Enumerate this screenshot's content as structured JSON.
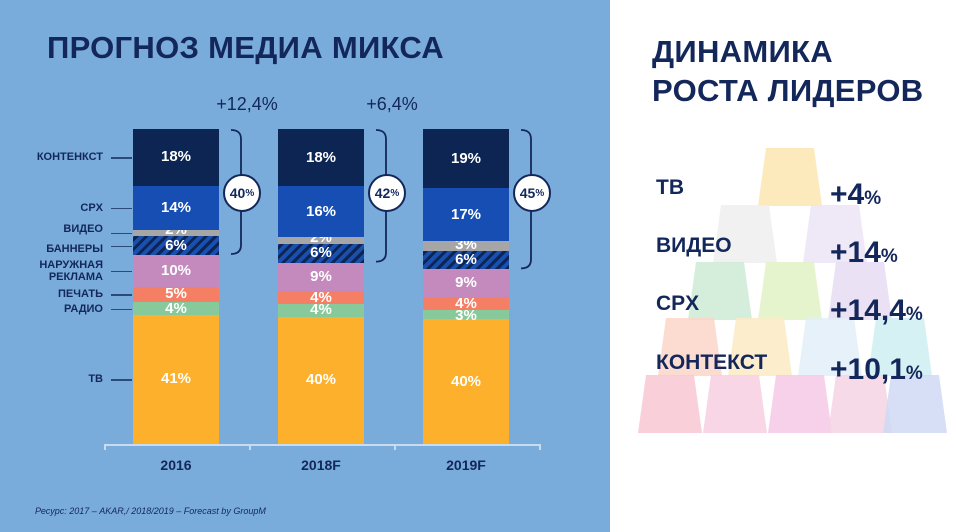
{
  "left_title": "ПРОГНОЗ МЕДИА МИКСА",
  "right_title": [
    "ДИНАМИКА",
    "РОСТА ЛИДЕРОВ"
  ],
  "footnote": "Ресурс: 2017 – AKAR,/ 2018/2019 – Forecast by GroupM",
  "chart_data": {
    "type": "bar",
    "stacked": true,
    "categories": [
      "2016",
      "2018F",
      "2019F"
    ],
    "series": [
      {
        "name": "ТВ",
        "color": "#fdb02b",
        "values": [
          41,
          40,
          40
        ]
      },
      {
        "name": "РАДИО",
        "color": "#87c99a",
        "values": [
          4,
          4,
          3
        ]
      },
      {
        "name": "ПЕЧАТЬ",
        "color": "#f47f65",
        "values": [
          5,
          4,
          4
        ]
      },
      {
        "name": "НАРУЖНАЯ РЕКЛАМА",
        "color": "#c48abe",
        "values": [
          10,
          9,
          9
        ]
      },
      {
        "name": "БАННЕРЫ",
        "color": "#1a4fb0",
        "hatched": true,
        "values": [
          6,
          6,
          6
        ]
      },
      {
        "name": "ВИДЕО",
        "color": "#a6a6a6",
        "values": [
          2,
          2,
          3
        ]
      },
      {
        "name": "CPX",
        "color": "#164eb4",
        "values": [
          14,
          16,
          17
        ]
      },
      {
        "name": "КОНТЕНКСТ",
        "color": "#0c2552",
        "values": [
          18,
          18,
          19
        ]
      }
    ],
    "digital_totals": [
      "40%",
      "42%",
      "45%"
    ],
    "growth": [
      "+12,4%",
      "+6,4%"
    ],
    "ylim": [
      0,
      100
    ]
  },
  "leaders": [
    {
      "label": "ТВ",
      "value": "+4",
      "unit": "%"
    },
    {
      "label": "ВИДЕО",
      "value": "+14",
      "unit": "%"
    },
    {
      "label": "CPX",
      "value": "+14,4",
      "unit": "%"
    },
    {
      "label": "КОНТЕКСТ",
      "value": "+10,1",
      "unit": "%"
    }
  ]
}
